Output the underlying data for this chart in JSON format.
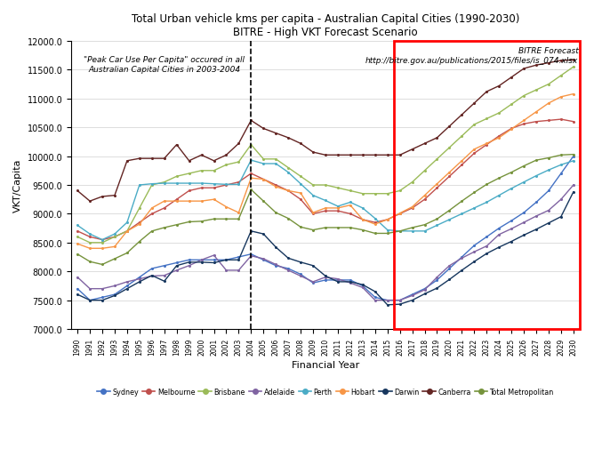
{
  "title_line1": "Total Urban vehicle kms per capita - Australian Capital Cities (1990-2030)",
  "title_line2": "BITRE - High VKT Forecast Scenario",
  "xlabel": "Financial Year",
  "ylabel": "VKT/Capita",
  "ylim": [
    7000,
    12000
  ],
  "yticks": [
    7000,
    7500,
    8000,
    8500,
    9000,
    9500,
    10000,
    10500,
    11000,
    11500,
    12000
  ],
  "years": [
    "1990",
    "1991",
    "1992",
    "1993",
    "1994",
    "1995",
    "1996",
    "1997",
    "1998",
    "1999",
    "2000",
    "2001",
    "2002",
    "2003",
    "2004",
    "2005",
    "2006",
    "2007",
    "2008",
    "2009",
    "2010",
    "2011",
    "2012",
    "2013",
    "2014",
    "2015",
    "2016",
    "2017",
    "2018",
    "2019",
    "2020",
    "2021",
    "2022",
    "2023",
    "2024",
    "2025",
    "2026",
    "2027",
    "2028",
    "2029",
    "2030"
  ],
  "dashed_line_year": "2004",
  "forecast_start_year": "2016",
  "peak_text": "\"Peak Car Use Per Capita\" occured in all\nAustralian Capital Cities in 2003-2004",
  "bitre_text": "BITRE Forecast\nhttp://bitre.gov.au/publications/2015/files/is_074.xlsx",
  "series": {
    "Sydney": {
      "color": "#4472C4",
      "values": [
        7700,
        7500,
        7550,
        7600,
        7750,
        7900,
        8050,
        8100,
        8150,
        8200,
        8200,
        8200,
        8200,
        8250,
        8300,
        8200,
        8100,
        8050,
        7950,
        7800,
        7850,
        7850,
        7850,
        7750,
        7550,
        7500,
        7500,
        7600,
        7700,
        7850,
        8050,
        8250,
        8450,
        8600,
        8750,
        8880,
        9020,
        9200,
        9400,
        9700,
        10000
      ]
    },
    "Melbourne": {
      "color": "#C0504D",
      "values": [
        8700,
        8600,
        8550,
        8600,
        8700,
        8850,
        9000,
        9100,
        9250,
        9400,
        9450,
        9450,
        9500,
        9550,
        9700,
        9600,
        9500,
        9400,
        9250,
        9000,
        9050,
        9050,
        9000,
        8900,
        8850,
        8900,
        9000,
        9100,
        9250,
        9450,
        9650,
        9850,
        10050,
        10200,
        10350,
        10480,
        10560,
        10600,
        10620,
        10640,
        10600
      ]
    },
    "Brisbane": {
      "color": "#9BBB59",
      "values": [
        8600,
        8500,
        8500,
        8600,
        8700,
        9100,
        9500,
        9550,
        9650,
        9700,
        9750,
        9750,
        9850,
        9900,
        10200,
        9950,
        9950,
        9800,
        9650,
        9500,
        9500,
        9450,
        9400,
        9350,
        9350,
        9350,
        9400,
        9550,
        9750,
        9950,
        10150,
        10350,
        10550,
        10650,
        10750,
        10900,
        11050,
        11150,
        11250,
        11400,
        11550
      ]
    },
    "Adelaide": {
      "color": "#8064A2",
      "values": [
        7900,
        7700,
        7700,
        7750,
        7820,
        7870,
        7920,
        7930,
        8020,
        8100,
        8200,
        8280,
        8020,
        8020,
        8270,
        8220,
        8120,
        8020,
        7920,
        7820,
        7900,
        7870,
        7800,
        7720,
        7500,
        7500,
        7500,
        7580,
        7680,
        7900,
        8100,
        8230,
        8340,
        8440,
        8640,
        8740,
        8850,
        8960,
        9060,
        9250,
        9500
      ]
    },
    "Perth": {
      "color": "#4BACC6",
      "values": [
        8800,
        8650,
        8550,
        8650,
        8850,
        9500,
        9520,
        9530,
        9530,
        9530,
        9530,
        9520,
        9510,
        9510,
        9930,
        9870,
        9870,
        9720,
        9520,
        9320,
        9230,
        9130,
        9200,
        9100,
        8920,
        8720,
        8700,
        8700,
        8700,
        8800,
        8900,
        9000,
        9100,
        9200,
        9320,
        9440,
        9550,
        9660,
        9760,
        9850,
        9920
      ]
    },
    "Hobart": {
      "color": "#F79646",
      "values": [
        8480,
        8400,
        8400,
        8430,
        8700,
        8820,
        9100,
        9220,
        9220,
        9220,
        9220,
        9250,
        9120,
        9020,
        9620,
        9600,
        9470,
        9400,
        9360,
        9020,
        9100,
        9100,
        9150,
        8900,
        8820,
        8900,
        9010,
        9120,
        9320,
        9520,
        9720,
        9920,
        10120,
        10220,
        10320,
        10470,
        10620,
        10770,
        10920,
        11030,
        11080
      ]
    },
    "Darwin": {
      "color": "#17375E",
      "values": [
        7600,
        7500,
        7500,
        7580,
        7700,
        7820,
        7930,
        7830,
        8100,
        8160,
        8160,
        8150,
        8200,
        8200,
        8700,
        8650,
        8420,
        8230,
        8160,
        8100,
        7920,
        7820,
        7820,
        7770,
        7650,
        7420,
        7430,
        7500,
        7610,
        7710,
        7860,
        8020,
        8170,
        8310,
        8420,
        8520,
        8630,
        8730,
        8840,
        8950,
        9380
      ]
    },
    "Canberra": {
      "color": "#632523",
      "values": [
        9400,
        9220,
        9300,
        9320,
        9920,
        9960,
        9960,
        9960,
        10200,
        9920,
        10020,
        9920,
        10020,
        10220,
        10620,
        10480,
        10400,
        10320,
        10220,
        10070,
        10020,
        10020,
        10020,
        10020,
        10020,
        10020,
        10020,
        10120,
        10220,
        10320,
        10520,
        10720,
        10920,
        11120,
        11220,
        11370,
        11520,
        11580,
        11620,
        11660,
        11670
      ]
    },
    "Total Metropolitan": {
      "color": "#76933C",
      "values": [
        8300,
        8170,
        8120,
        8220,
        8320,
        8520,
        8700,
        8760,
        8810,
        8860,
        8870,
        8910,
        8910,
        8910,
        9420,
        9220,
        9020,
        8920,
        8770,
        8720,
        8760,
        8760,
        8760,
        8720,
        8660,
        8660,
        8700,
        8760,
        8810,
        8910,
        9060,
        9220,
        9370,
        9510,
        9620,
        9720,
        9830,
        9930,
        9970,
        10020,
        10030
      ]
    }
  },
  "legend_order": [
    "Sydney",
    "Melbourne",
    "Brisbane",
    "Adelaide",
    "Perth",
    "Hobart",
    "Darwin",
    "Canberra",
    "Total Metropolitan"
  ]
}
